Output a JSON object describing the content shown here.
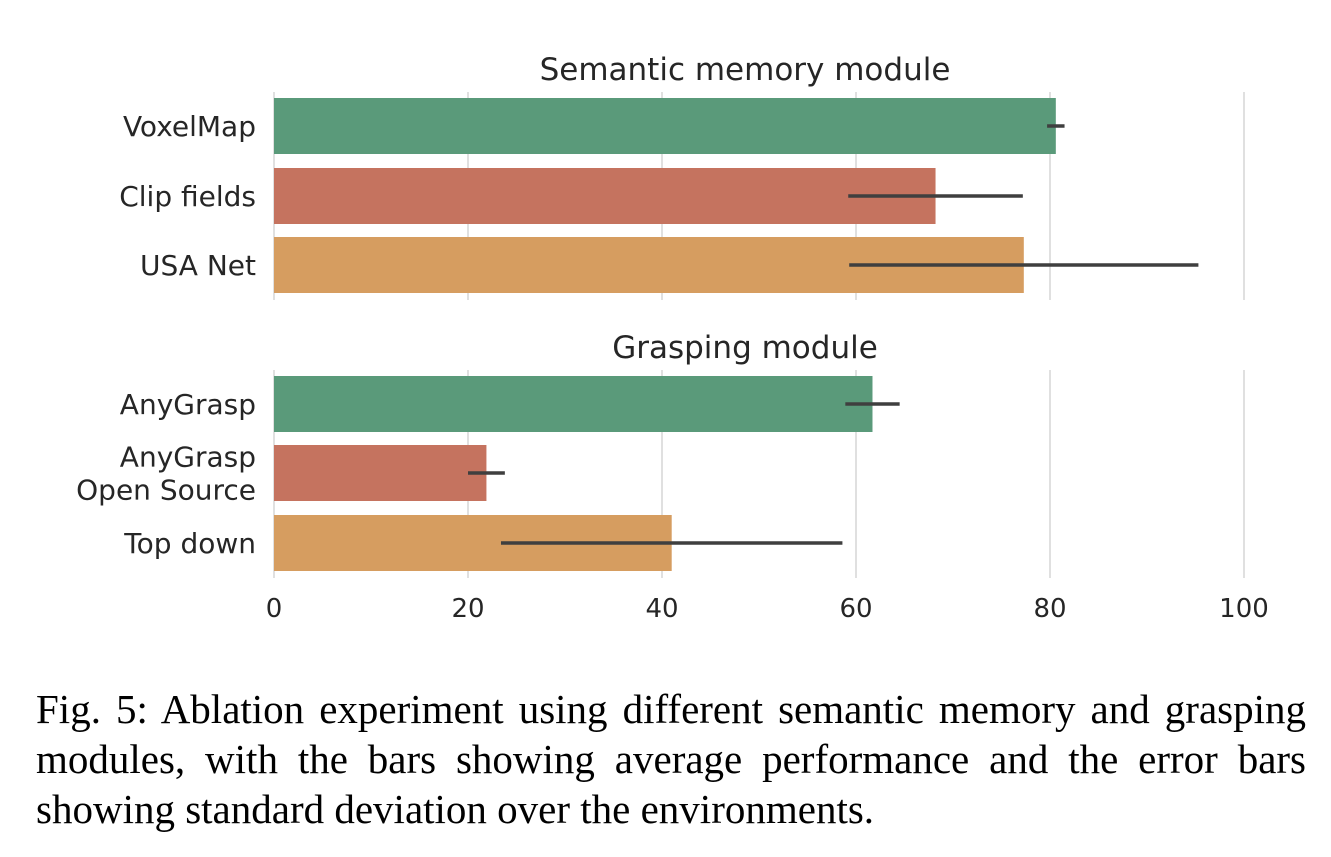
{
  "chart_data": [
    {
      "type": "bar",
      "orientation": "horizontal",
      "title": "Semantic memory module",
      "categories": [
        "VoxelMap",
        "Clip fields",
        "USA Net"
      ],
      "values": [
        80.6,
        68.2,
        77.3
      ],
      "error": [
        0.9,
        9.0,
        18.0
      ],
      "colors": [
        "#5a9a7a",
        "#c5735f",
        "#d69d60"
      ],
      "xlim": [
        0,
        100
      ],
      "grid": true
    },
    {
      "type": "bar",
      "orientation": "horizontal",
      "title": "Grasping module",
      "categories": [
        "AnyGrasp",
        "AnyGrasp\nOpen Source",
        "Top down"
      ],
      "values": [
        61.7,
        21.9,
        41.0
      ],
      "error": [
        2.8,
        1.9,
        17.6
      ],
      "colors": [
        "#5a9a7a",
        "#c5735f",
        "#d69d60"
      ],
      "xlim": [
        0,
        100
      ],
      "xticks": [
        "0",
        "20",
        "40",
        "60",
        "80",
        "100"
      ],
      "grid": true
    }
  ],
  "caption": "Fig. 5: Ablation experiment using different semantic memory and grasping modules, with the bars showing average performance and the error bars showing standard deviation over the environments."
}
